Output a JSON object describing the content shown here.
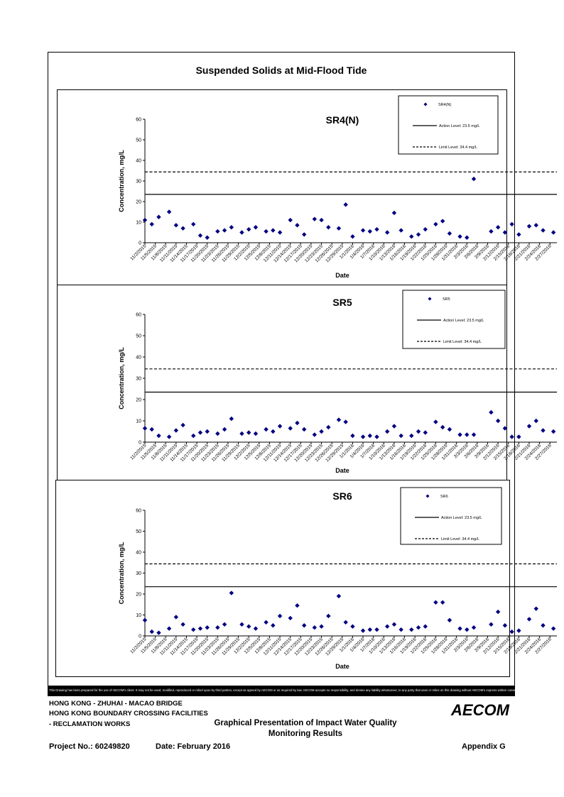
{
  "page": {
    "title": "Suspended Solids at Mid-Flood Tide"
  },
  "common": {
    "x_tick_labels": [
      "11/2/2015",
      "11/5/2015",
      "11/8/2015",
      "11/11/2015",
      "11/14/2015",
      "11/17/2015",
      "11/20/2015",
      "11/23/2015",
      "11/26/2015",
      "11/29/2015",
      "12/2/2015",
      "12/5/2015",
      "12/8/2015",
      "12/11/2015",
      "12/14/2015",
      "12/17/2015",
      "12/20/2015",
      "12/23/2015",
      "12/26/2015",
      "12/29/2015",
      "1/1/2016",
      "1/4/2016",
      "1/7/2016",
      "1/10/2016",
      "1/13/2016",
      "1/16/2016",
      "1/19/2016",
      "1/22/2016",
      "1/25/2016",
      "1/28/2016",
      "1/31/2016",
      "2/3/2016",
      "2/6/2016",
      "2/9/2016",
      "2/12/2016",
      "2/15/2016",
      "2/18/2016",
      "2/21/2016",
      "2/24/2016",
      "2/27/2016"
    ],
    "y_ticks": [
      "0",
      "10",
      "20",
      "30",
      "40",
      "50",
      "60"
    ],
    "xlabel": "Date",
    "ylabel": "Concentration, mg/L",
    "action_label": "Action Level: 23.5 mg/L",
    "limit_label": "Limit Level: 34.4 mg/L"
  },
  "chart_data": [
    {
      "type": "scatter",
      "title": "SR4(N)",
      "xlabel": "Date",
      "ylabel": "Concentration, mg/L",
      "ylim": [
        0,
        60
      ],
      "xlim": [
        "11/2/2015",
        "2/29/2016"
      ],
      "legend_position": "top-right",
      "series": [
        {
          "name": "SR4(N)",
          "x": [
            "11/2/2015",
            "11/4/2015",
            "11/6/2015",
            "11/9/2015",
            "11/11/2015",
            "11/13/2015",
            "11/16/2015",
            "11/18/2015",
            "11/20/2015",
            "11/23/2015",
            "11/25/2015",
            "11/27/2015",
            "11/30/2015",
            "12/2/2015",
            "12/4/2015",
            "12/7/2015",
            "12/9/2015",
            "12/11/2015",
            "12/14/2015",
            "12/16/2015",
            "12/18/2015",
            "12/21/2015",
            "12/23/2015",
            "12/25/2015",
            "12/28/2015",
            "12/30/2015",
            "1/1/2016",
            "1/4/2016",
            "1/6/2016",
            "1/8/2016",
            "1/11/2016",
            "1/13/2016",
            "1/15/2016",
            "1/18/2016",
            "1/20/2016",
            "1/22/2016",
            "1/25/2016",
            "1/27/2016",
            "1/29/2016",
            "2/1/2016",
            "2/3/2016",
            "2/5/2016",
            "2/10/2016",
            "2/12/2016",
            "2/14/2016",
            "2/16/2016",
            "2/18/2016",
            "2/21/2016",
            "2/23/2016",
            "2/25/2016",
            "2/28/2016"
          ],
          "y": [
            11,
            9,
            12.5,
            15,
            8.5,
            7,
            9,
            3.5,
            2.5,
            5.5,
            6,
            7.5,
            5,
            6.5,
            7.5,
            5.5,
            6,
            5,
            11,
            8.5,
            4,
            11.5,
            11,
            7.5,
            7,
            18.5,
            3,
            6,
            5.5,
            6.5,
            5,
            14.5,
            6,
            3,
            4,
            6.5,
            9,
            10.5,
            4.5,
            3,
            2.5,
            31,
            5.5,
            7.5,
            5,
            9,
            4,
            8,
            8.5,
            6,
            5
          ]
        },
        {
          "name": "Action Level: 23.5 mg/L",
          "value": 23.5
        },
        {
          "name": "Limit Level: 34.4 mg/L",
          "value": 34.4
        }
      ]
    },
    {
      "type": "scatter",
      "title": "SR5",
      "xlabel": "Date",
      "ylabel": "Concentration, mg/L",
      "ylim": [
        0,
        60
      ],
      "xlim": [
        "11/2/2015",
        "2/29/2016"
      ],
      "legend_position": "top-right",
      "series": [
        {
          "name": "SR5",
          "x": [
            "11/2/2015",
            "11/4/2015",
            "11/6/2015",
            "11/9/2015",
            "11/11/2015",
            "11/13/2015",
            "11/16/2015",
            "11/18/2015",
            "11/20/2015",
            "11/23/2015",
            "11/25/2015",
            "11/27/2015",
            "11/30/2015",
            "12/2/2015",
            "12/4/2015",
            "12/7/2015",
            "12/9/2015",
            "12/11/2015",
            "12/14/2015",
            "12/16/2015",
            "12/18/2015",
            "12/21/2015",
            "12/23/2015",
            "12/25/2015",
            "12/28/2015",
            "12/30/2015",
            "1/1/2016",
            "1/4/2016",
            "1/6/2016",
            "1/8/2016",
            "1/11/2016",
            "1/13/2016",
            "1/15/2016",
            "1/18/2016",
            "1/20/2016",
            "1/22/2016",
            "1/25/2016",
            "1/27/2016",
            "1/29/2016",
            "2/1/2016",
            "2/3/2016",
            "2/5/2016",
            "2/10/2016",
            "2/12/2016",
            "2/14/2016",
            "2/16/2016",
            "2/18/2016",
            "2/21/2016",
            "2/23/2016",
            "2/25/2016",
            "2/28/2016"
          ],
          "y": [
            6.5,
            6,
            3,
            2.5,
            5.5,
            8,
            3,
            4.5,
            5,
            4,
            6,
            11,
            4,
            4.5,
            4,
            6,
            5,
            7.5,
            6.5,
            9,
            6,
            3.5,
            5,
            7,
            10.5,
            9.5,
            3,
            2.5,
            3,
            2.5,
            5,
            7.5,
            3,
            3,
            5,
            4.5,
            9.5,
            7,
            6,
            3.5,
            3.5,
            3.5,
            14,
            10,
            6.5,
            2.5,
            2.5,
            7.5,
            10,
            5.5,
            5
          ]
        },
        {
          "name": "Action Level: 23.5 mg/L",
          "value": 23.5
        },
        {
          "name": "Limit Level: 34.4 mg/L",
          "value": 34.4
        }
      ]
    },
    {
      "type": "scatter",
      "title": "SR6",
      "xlabel": "Date",
      "ylabel": "Concentration, mg/L",
      "ylim": [
        0,
        60
      ],
      "xlim": [
        "11/2/2015",
        "2/29/2016"
      ],
      "legend_position": "top-right",
      "series": [
        {
          "name": "SR6",
          "x": [
            "11/2/2015",
            "11/4/2015",
            "11/6/2015",
            "11/9/2015",
            "11/11/2015",
            "11/13/2015",
            "11/16/2015",
            "11/18/2015",
            "11/20/2015",
            "11/23/2015",
            "11/25/2015",
            "11/27/2015",
            "11/30/2015",
            "12/2/2015",
            "12/4/2015",
            "12/7/2015",
            "12/9/2015",
            "12/11/2015",
            "12/14/2015",
            "12/16/2015",
            "12/18/2015",
            "12/21/2015",
            "12/23/2015",
            "12/25/2015",
            "12/28/2015",
            "12/30/2015",
            "1/1/2016",
            "1/4/2016",
            "1/6/2016",
            "1/8/2016",
            "1/11/2016",
            "1/13/2016",
            "1/15/2016",
            "1/18/2016",
            "1/20/2016",
            "1/22/2016",
            "1/25/2016",
            "1/27/2016",
            "1/29/2016",
            "2/1/2016",
            "2/3/2016",
            "2/5/2016",
            "2/10/2016",
            "2/12/2016",
            "2/14/2016",
            "2/16/2016",
            "2/18/2016",
            "2/21/2016",
            "2/23/2016",
            "2/25/2016",
            "2/28/2016"
          ],
          "y": [
            7.5,
            2,
            1.5,
            3.5,
            9,
            5.5,
            3,
            3.5,
            4,
            4,
            5.5,
            20.5,
            5.5,
            4.5,
            3.5,
            6.5,
            5,
            9.5,
            8.5,
            14.5,
            5,
            4,
            4.5,
            9.5,
            19,
            6.5,
            4.5,
            2.5,
            3,
            3,
            4.5,
            5.5,
            3,
            3,
            4,
            4.5,
            16,
            16,
            7.5,
            3.5,
            3,
            4,
            5.5,
            11.5,
            5,
            2,
            2.5,
            8,
            13,
            5,
            3.5
          ]
        },
        {
          "name": "Action Level: 23.5 mg/L",
          "value": 23.5
        },
        {
          "name": "Limit Level: 34.4 mg/L",
          "value": 34.4
        }
      ]
    }
  ],
  "footer": {
    "disclaimer": "This Drawing has been prepared for the use of AECOM's client. It may not be used, modified, reproduced or relied upon by third parties, except as agreed by AECOM or as required by law. AECOM accepts no responsibility, and denies any liability whatsoever, to any party that uses or relies on this drawing without AECOM's express written consent.",
    "project_line1": "HONG KONG - ZHUHAI - MACAO BRIDGE",
    "project_line2": "HONG KONG BOUNDARY CROSSING FACILITIES",
    "project_line3": "- RECLAMATION WORKS",
    "heading_line1": "Graphical Presentation of Impact Water Quality",
    "heading_line2": "Monitoring Results",
    "project_no": "Project No.: 60249820",
    "date": "Date: February 2016",
    "appendix": "Appendix G",
    "logo_text": "AECOM"
  },
  "colors": {
    "marker": "#000080",
    "lines": "#000000"
  }
}
